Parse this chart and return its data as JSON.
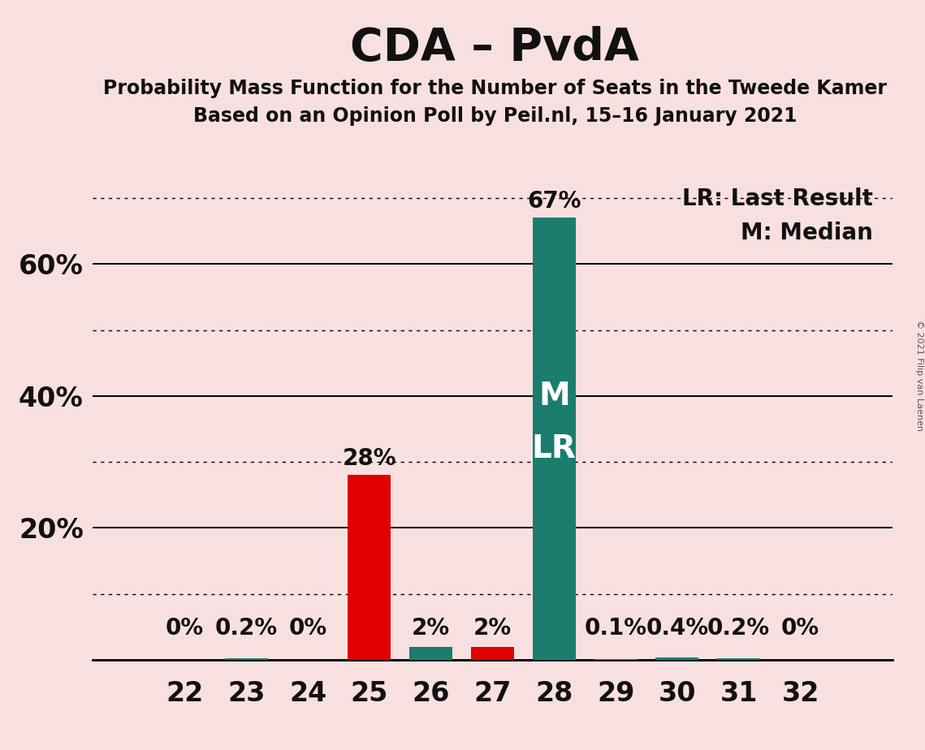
{
  "title": "CDA – PvdA",
  "subtitle1": "Probability Mass Function for the Number of Seats in the Tweede Kamer",
  "subtitle2": "Based on an Opinion Poll by Peil.nl, 15–16 January 2021",
  "watermark": "© 2021 Filip van Laenen",
  "legend_line1": "LR: Last Result",
  "legend_line2": "M: Median",
  "seats": [
    22,
    23,
    24,
    25,
    26,
    27,
    28,
    29,
    30,
    31,
    32
  ],
  "green_values": [
    0.0,
    0.002,
    0.0,
    0.0,
    0.02,
    0.0,
    0.67,
    0.001,
    0.004,
    0.002,
    0.0
  ],
  "red_values": [
    0.0,
    0.0,
    0.0,
    0.28,
    0.0,
    0.02,
    0.0,
    0.0,
    0.0,
    0.0,
    0.0
  ],
  "green_labels": [
    "",
    "0.2%",
    "",
    "",
    "2%",
    "",
    "67%",
    "0.1%",
    "0.4%",
    "0.2%",
    ""
  ],
  "red_labels": [
    "0%",
    "",
    "0%",
    "28%",
    "",
    "2%",
    "",
    "",
    "",
    "",
    "0%"
  ],
  "background_color": "#f9e0e0",
  "green_color": "#1a7d6e",
  "red_color": "#e00000",
  "text_color": "#111111",
  "ylim": [
    0,
    0.75
  ],
  "solid_yticks": [
    0.0,
    0.2,
    0.4,
    0.6
  ],
  "dotted_yticks": [
    0.1,
    0.3,
    0.5,
    0.7
  ],
  "ytick_positions": [
    0.2,
    0.4,
    0.6
  ],
  "ytick_labels": [
    "20%",
    "40%",
    "60%"
  ],
  "bar_width": 0.7
}
